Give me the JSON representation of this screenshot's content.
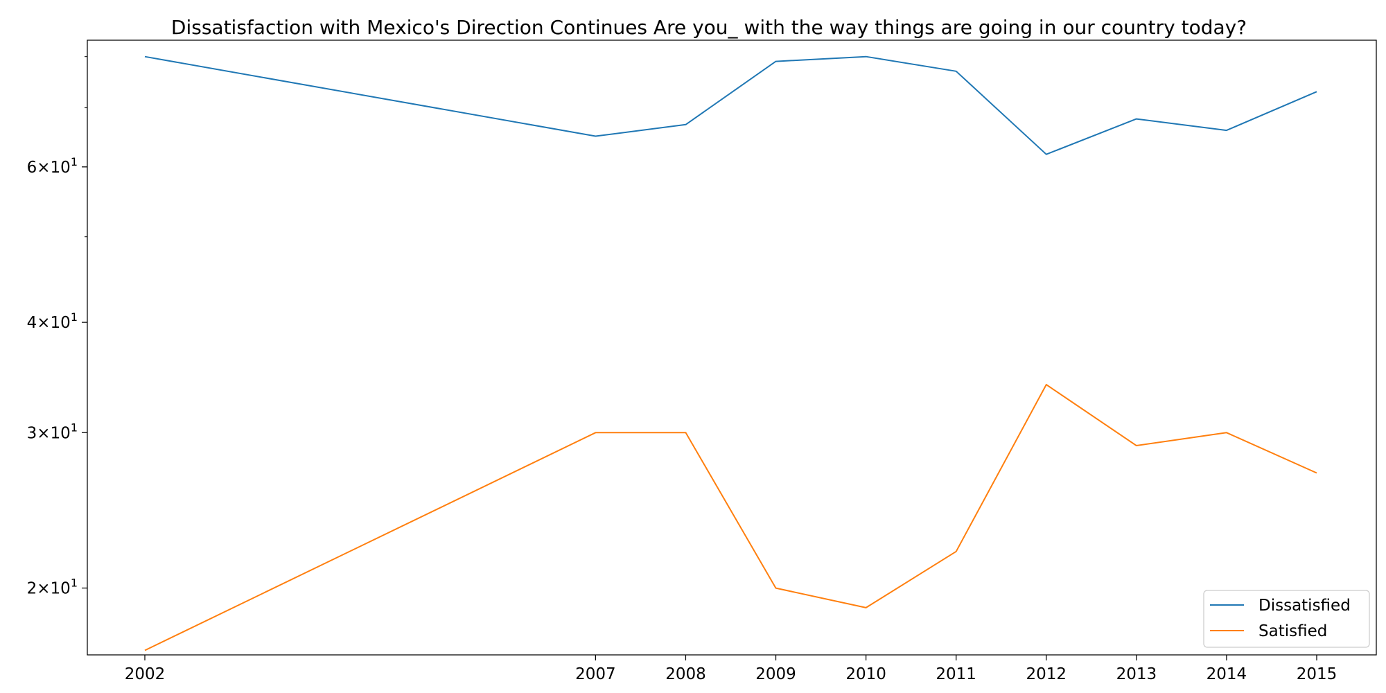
{
  "chart_data": {
    "type": "line",
    "title": "Dissatisfaction with Mexico's Direction Continues Are you_ with the way things are going in our country today?",
    "xlabel": "",
    "ylabel": "",
    "x": [
      2002,
      2007,
      2008,
      2009,
      2010,
      2011,
      2012,
      2013,
      2014,
      2015
    ],
    "x_tick_labels": [
      "2002",
      "2007",
      "2008",
      "2009",
      "2010",
      "2011",
      "2012",
      "2013",
      "2014",
      "2015"
    ],
    "y_scale": "log",
    "ylim": [
      16.8,
      83.5
    ],
    "y_major_ticks": [
      {
        "value": 20,
        "base": "2",
        "exp": "1"
      },
      {
        "value": 30,
        "base": "3",
        "exp": "1"
      },
      {
        "value": 40,
        "base": "4",
        "exp": "1"
      },
      {
        "value": 60,
        "base": "6",
        "exp": "1"
      }
    ],
    "y_minor_ticks": [
      50,
      70,
      80
    ],
    "grid": false,
    "legend_position": "lower-right",
    "series": [
      {
        "name": "Dissatisfied",
        "color": "#1f77b4",
        "values": [
          80,
          65,
          67,
          79,
          80,
          77,
          62,
          68,
          66,
          73
        ]
      },
      {
        "name": "Satisfied",
        "color": "#ff7f0e",
        "values": [
          17,
          30,
          30,
          20,
          19,
          22,
          34,
          29,
          30,
          27
        ]
      }
    ]
  }
}
